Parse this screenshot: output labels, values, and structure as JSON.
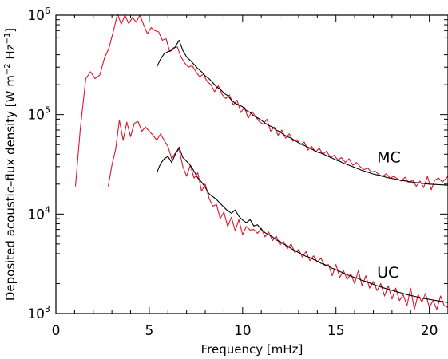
{
  "chart_data": {
    "type": "line",
    "xlabel": "Frequency [mHz]",
    "ylabel_main": "Deposited acoustic–flux density [W m",
    "ylabel_sup1": "−2",
    "ylabel_mid": " Hz",
    "ylabel_sup2": "−1",
    "ylabel_end": "]",
    "xlim": [
      0,
      21
    ],
    "ylim": [
      1000,
      1000000
    ],
    "yscale": "log",
    "x_ticks": [
      0,
      5,
      10,
      15,
      20
    ],
    "x_tick_labels": [
      "0",
      "5",
      "10",
      "15",
      "20"
    ],
    "y_ticks": [
      1000,
      10000,
      100000,
      1000000
    ],
    "y_tick_base": "10",
    "y_tick_exps": [
      "3",
      "4",
      "5",
      "6"
    ],
    "grid": false,
    "annotations": [
      {
        "text": "MC",
        "x": 17.2,
        "y": 33000
      },
      {
        "text": "UC",
        "x": 17.2,
        "y": 2300
      }
    ],
    "series": [
      {
        "group": "MC",
        "color": "#e0142a",
        "x": [
          1.05,
          1.3,
          1.6,
          1.85,
          2.1,
          2.35,
          2.6,
          2.85,
          3.1,
          3.3,
          3.5,
          3.7,
          3.9,
          4.1,
          4.3,
          4.5,
          4.7,
          4.9,
          5.1,
          5.3,
          5.5,
          5.7,
          5.9,
          6.1,
          6.3,
          6.5,
          6.7,
          6.9,
          7.1,
          7.3,
          7.5,
          7.7,
          7.9,
          8.1,
          8.3,
          8.5,
          8.7,
          8.9,
          9.1,
          9.3,
          9.5,
          9.7,
          9.9,
          10.1,
          10.3,
          10.5,
          10.7,
          10.9,
          11.1,
          11.3,
          11.5,
          11.7,
          11.9,
          12.1,
          12.3,
          12.5,
          12.7,
          12.9,
          13.1,
          13.3,
          13.5,
          13.7,
          13.9,
          14.1,
          14.3,
          14.5,
          14.7,
          14.9,
          15.1,
          15.3,
          15.5,
          15.7,
          15.9,
          16.1,
          16.3,
          16.5,
          16.7,
          16.9,
          17.1,
          17.3,
          17.5,
          17.7,
          17.9,
          18.1,
          18.3,
          18.5,
          18.7,
          18.9,
          19.1,
          19.3,
          19.5,
          19.7,
          19.9,
          20.1,
          20.3,
          20.5,
          20.7,
          21.0
        ],
        "values": [
          19000,
          70000,
          230000,
          270000,
          230000,
          250000,
          370000,
          470000,
          720000,
          1030000,
          810000,
          1000000,
          820000,
          950000,
          850000,
          1000000,
          800000,
          650000,
          750000,
          700000,
          680000,
          560000,
          580000,
          430000,
          470000,
          480000,
          380000,
          330000,
          300000,
          310000,
          270000,
          240000,
          255000,
          215000,
          200000,
          170000,
          195000,
          160000,
          145000,
          158000,
          125000,
          140000,
          105000,
          118000,
          92000,
          108000,
          95000,
          85000,
          80000,
          90000,
          68000,
          75000,
          62000,
          70000,
          58000,
          64000,
          54000,
          56000,
          50000,
          53000,
          44000,
          48000,
          42000,
          46000,
          40000,
          43000,
          37000,
          39000,
          35000,
          37000,
          33000,
          36000,
          31000,
          33000,
          30000,
          28000,
          29000,
          26500,
          27000,
          25000,
          24000,
          25500,
          23000,
          24000,
          22500,
          21500,
          23500,
          20500,
          22000,
          19000,
          21500,
          18500,
          24000,
          17500,
          22000,
          23000,
          21000,
          24000
        ]
      },
      {
        "group": "MC",
        "color": "#000000",
        "x": [
          5.4,
          5.6,
          5.8,
          6.0,
          6.2,
          6.4,
          6.6,
          6.8,
          7.0,
          7.2,
          7.4,
          7.6,
          7.8,
          8.0,
          8.2,
          8.4,
          8.6,
          8.8,
          9.0,
          9.2,
          9.4,
          9.6,
          9.8,
          10.0,
          10.2,
          10.4,
          10.6,
          10.8,
          11.0,
          11.2,
          11.4,
          11.6,
          11.8,
          12.0,
          12.2,
          12.4,
          12.6,
          12.8,
          13.0,
          13.2,
          13.4,
          13.6,
          13.8,
          14.0,
          14.2,
          14.4,
          14.6,
          14.8,
          15.0,
          15.2,
          15.4,
          15.6,
          15.8,
          16.0,
          16.2,
          16.4,
          16.6,
          16.8,
          17.0,
          17.2,
          17.4,
          17.6,
          17.8,
          18.0,
          18.2,
          18.4,
          18.6,
          18.8,
          19.0,
          19.2,
          19.4,
          19.6,
          19.8,
          20.0,
          20.2,
          20.4,
          20.6,
          20.8,
          21.0
        ],
        "values": [
          300000,
          360000,
          410000,
          430000,
          440000,
          480000,
          560000,
          440000,
          380000,
          350000,
          320000,
          290000,
          270000,
          245000,
          230000,
          210000,
          190000,
          180000,
          165000,
          155000,
          140000,
          130000,
          125000,
          120000,
          110000,
          105000,
          97000,
          93000,
          88000,
          82000,
          78000,
          75000,
          70000,
          67000,
          63000,
          60000,
          58000,
          55000,
          52000,
          50000,
          48000,
          46000,
          44000,
          42000,
          41000,
          39500,
          38000,
          36500,
          35000,
          34000,
          32500,
          31500,
          30500,
          29500,
          28500,
          27500,
          26800,
          26000,
          25300,
          24800,
          24200,
          23700,
          23200,
          22800,
          22400,
          22000,
          21700,
          21400,
          21100,
          20800,
          20600,
          20400,
          20200,
          20000,
          19900,
          19800,
          19700,
          19600,
          19500
        ]
      },
      {
        "group": "UC",
        "color": "#e0142a",
        "x": [
          2.8,
          3.0,
          3.2,
          3.4,
          3.6,
          3.8,
          4.0,
          4.2,
          4.4,
          4.6,
          4.8,
          5.0,
          5.2,
          5.4,
          5.6,
          5.8,
          6.0,
          6.2,
          6.4,
          6.6,
          6.8,
          7.0,
          7.2,
          7.4,
          7.6,
          7.8,
          8.0,
          8.2,
          8.4,
          8.6,
          8.8,
          9.0,
          9.2,
          9.4,
          9.6,
          9.8,
          10.0,
          10.2,
          10.4,
          10.6,
          10.8,
          11.0,
          11.2,
          11.4,
          11.6,
          11.8,
          12.0,
          12.2,
          12.4,
          12.6,
          12.8,
          13.0,
          13.2,
          13.4,
          13.6,
          13.8,
          14.0,
          14.2,
          14.4,
          14.6,
          14.8,
          15.0,
          15.2,
          15.4,
          15.6,
          15.8,
          16.0,
          16.2,
          16.4,
          16.6,
          16.8,
          17.0,
          17.2,
          17.4,
          17.6,
          17.8,
          18.0,
          18.2,
          18.4,
          18.6,
          18.8,
          19.0,
          19.2,
          19.4,
          19.6,
          19.8,
          20.0,
          20.2,
          20.4,
          20.6,
          20.8,
          21.0
        ],
        "values": [
          19000,
          31000,
          45000,
          88000,
          55000,
          84000,
          60000,
          82000,
          85000,
          68000,
          75000,
          68000,
          62000,
          55000,
          64000,
          55000,
          48000,
          36000,
          41000,
          45000,
          30000,
          24000,
          31000,
          23000,
          26000,
          17000,
          20000,
          14500,
          12000,
          12500,
          9000,
          10500,
          7500,
          9300,
          6800,
          8800,
          6200,
          7500,
          6900,
          7000,
          6400,
          7200,
          5900,
          6600,
          5400,
          6000,
          4900,
          5300,
          4500,
          5000,
          4100,
          4400,
          3700,
          4200,
          3400,
          3800,
          3300,
          3600,
          3000,
          3100,
          2400,
          3100,
          2300,
          2700,
          2200,
          2500,
          2000,
          2700,
          1900,
          2400,
          1800,
          2100,
          1700,
          2000,
          1500,
          1900,
          1400,
          1800,
          1350,
          1550,
          1200,
          1800,
          1100,
          1550,
          1300,
          1600,
          1150,
          1350,
          1100,
          1500,
          1200,
          1150
        ]
      },
      {
        "group": "UC",
        "color": "#000000",
        "x": [
          5.4,
          5.6,
          5.8,
          6.0,
          6.2,
          6.4,
          6.6,
          6.8,
          7.0,
          7.2,
          7.4,
          7.6,
          7.8,
          8.0,
          8.2,
          8.4,
          8.6,
          8.8,
          9.0,
          9.2,
          9.4,
          9.6,
          9.8,
          10.0,
          10.2,
          10.4,
          10.6,
          10.8,
          11.0,
          11.2,
          11.4,
          11.6,
          11.8,
          12.0,
          12.2,
          12.4,
          12.6,
          12.8,
          13.0,
          13.2,
          13.4,
          13.6,
          13.8,
          14.0,
          14.2,
          14.4,
          14.6,
          14.8,
          15.0,
          15.2,
          15.4,
          15.6,
          15.8,
          16.0,
          16.2,
          16.4,
          16.6,
          16.8,
          17.0,
          17.2,
          17.4,
          17.6,
          17.8,
          18.0,
          18.2,
          18.4,
          18.6,
          18.8,
          19.0,
          19.2,
          19.4,
          19.6,
          19.8,
          20.0,
          20.2,
          20.4,
          20.6,
          20.8,
          21.0
        ],
        "values": [
          26000,
          32000,
          36000,
          38000,
          33000,
          40000,
          47000,
          37000,
          34000,
          31000,
          27000,
          23000,
          21000,
          18500,
          16000,
          15000,
          14000,
          12800,
          11700,
          10800,
          10200,
          11000,
          9500,
          8700,
          8200,
          8800,
          7600,
          7800,
          7000,
          6500,
          6200,
          5900,
          5500,
          5300,
          5000,
          4800,
          4500,
          4300,
          4100,
          3900,
          3750,
          3650,
          3500,
          3350,
          3200,
          3100,
          3000,
          2850,
          2750,
          2650,
          2550,
          2450,
          2380,
          2300,
          2250,
          2150,
          2100,
          2030,
          1970,
          1900,
          1850,
          1800,
          1750,
          1710,
          1670,
          1630,
          1590,
          1550,
          1520,
          1490,
          1460,
          1430,
          1410,
          1390,
          1370,
          1350,
          1330,
          1310,
          1290
        ]
      }
    ]
  }
}
